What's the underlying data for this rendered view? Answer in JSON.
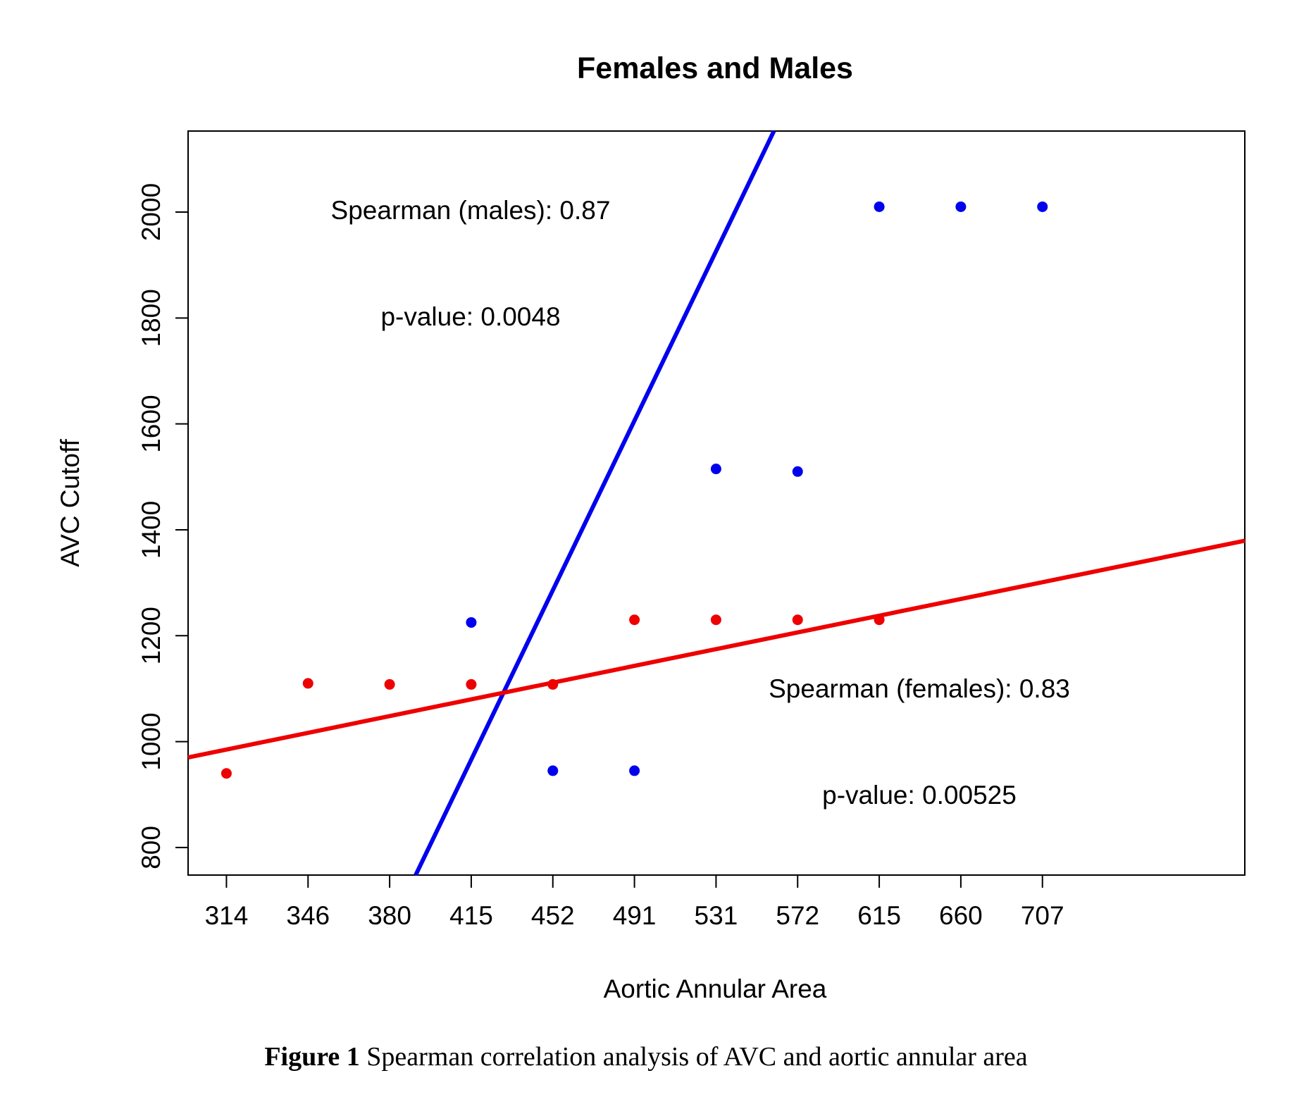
{
  "chart_data": {
    "type": "scatter",
    "title": "Females and Males",
    "xlabel": "Aortic Annular Area",
    "ylabel": "AVC Cutoff",
    "x_tick_labels": [
      "314",
      "346",
      "380",
      "415",
      "452",
      "491",
      "531",
      "572",
      "615",
      "660",
      "707"
    ],
    "x_range_index": [
      -0.47,
      12.48
    ],
    "y_ticks": [
      800,
      1000,
      1200,
      1400,
      1600,
      1800,
      2000
    ],
    "ylim": [
      748,
      2153
    ],
    "grid": false,
    "series": [
      {
        "name": "males",
        "color": "#0000ee",
        "points": [
          {
            "x_index": 3,
            "y": 1225
          },
          {
            "x_index": 4,
            "y": 945
          },
          {
            "x_index": 5,
            "y": 945
          },
          {
            "x_index": 6,
            "y": 1515
          },
          {
            "x_index": 7,
            "y": 1510
          },
          {
            "x_index": 8,
            "y": 2010
          },
          {
            "x_index": 9,
            "y": 2010
          },
          {
            "x_index": 10,
            "y": 2010
          }
        ],
        "fit": {
          "slope_per_index": 320,
          "intercept": 6
        }
      },
      {
        "name": "females",
        "color": "#ee0000",
        "points": [
          {
            "x_index": 0,
            "y": 940
          },
          {
            "x_index": 1,
            "y": 1110
          },
          {
            "x_index": 2,
            "y": 1108
          },
          {
            "x_index": 3,
            "y": 1108
          },
          {
            "x_index": 4,
            "y": 1108
          },
          {
            "x_index": 5,
            "y": 1230
          },
          {
            "x_index": 6,
            "y": 1230
          },
          {
            "x_index": 7,
            "y": 1230
          },
          {
            "x_index": 8,
            "y": 1230
          }
        ],
        "fit": {
          "slope_per_index": 31.6,
          "intercept": 985
        }
      }
    ],
    "annotations": {
      "males_spearman": "Spearman (males): 0.87",
      "males_pvalue": "p-value: 0.0048",
      "females_spearman": "Spearman (females): 0.83",
      "females_pvalue": "p-value: 0.00525"
    }
  },
  "caption": {
    "label": "Figure 1",
    "text": " Spearman correlation analysis of AVC and aortic annular area"
  }
}
